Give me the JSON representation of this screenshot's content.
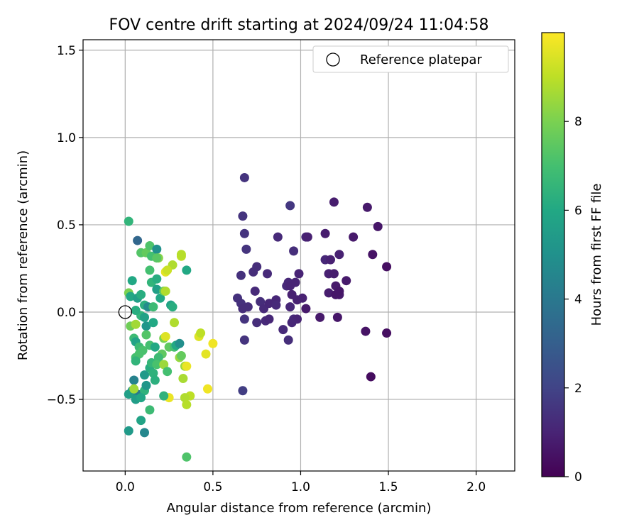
{
  "chart_data": {
    "type": "scatter",
    "title": "FOV centre drift starting at 2024/09/24 11:04:58",
    "xlabel": "Angular distance from reference (arcmin)",
    "ylabel": "Rotation from reference (arcmin)",
    "xlim": [
      -0.24,
      2.22
    ],
    "ylim": [
      -0.91,
      1.56
    ],
    "grid": true,
    "legend": {
      "position": "top-right",
      "entries": [
        "Reference platepar"
      ]
    },
    "x_ticks": [
      "0.0",
      "0.5",
      "1.0",
      "1.5",
      "2.0"
    ],
    "x_tick_values": [
      0.0,
      0.5,
      1.0,
      1.5,
      2.0
    ],
    "y_ticks": [
      "−0.5",
      "0.0",
      "0.5",
      "1.0",
      "1.5"
    ],
    "y_tick_values": [
      -0.5,
      0.0,
      0.5,
      1.0,
      1.5
    ],
    "colorbar": {
      "label": "Hours from first FF file",
      "range": [
        0,
        10
      ],
      "colormap": "viridis",
      "ticks": [
        "0",
        "2",
        "4",
        "6",
        "8"
      ],
      "tick_values": [
        0,
        2,
        4,
        6,
        8
      ]
    },
    "reference_point": {
      "x": 0.0,
      "y": 0.0,
      "label": "Reference platepar"
    },
    "points": [
      [
        0.68,
        0.77,
        1.5
      ],
      [
        0.67,
        0.55,
        1.5
      ],
      [
        0.68,
        0.45,
        1.5
      ],
      [
        0.69,
        0.36,
        1.5
      ],
      [
        0.66,
        0.21,
        1.4
      ],
      [
        0.73,
        0.23,
        1.3
      ],
      [
        0.75,
        0.26,
        1.3
      ],
      [
        0.81,
        0.22,
        1.2
      ],
      [
        0.87,
        0.43,
        1.2
      ],
      [
        0.94,
        0.61,
        1.6
      ],
      [
        0.96,
        0.35,
        1.3
      ],
      [
        0.99,
        0.22,
        1.0
      ],
      [
        1.03,
        0.43,
        1.1
      ],
      [
        1.04,
        0.43,
        0.9
      ],
      [
        1.14,
        0.45,
        0.8
      ],
      [
        1.19,
        0.63,
        0.8
      ],
      [
        1.22,
        0.33,
        0.9
      ],
      [
        1.3,
        0.43,
        0.7
      ],
      [
        1.38,
        0.6,
        0.7
      ],
      [
        1.44,
        0.49,
        0.6
      ],
      [
        1.41,
        0.33,
        0.5
      ],
      [
        1.49,
        0.26,
        0.4
      ],
      [
        1.14,
        0.3,
        1.1
      ],
      [
        1.17,
        0.3,
        0.9
      ],
      [
        1.16,
        0.22,
        0.9
      ],
      [
        1.19,
        0.22,
        0.8
      ],
      [
        1.16,
        0.11,
        0.8
      ],
      [
        1.2,
        0.15,
        0.7
      ],
      [
        1.22,
        0.1,
        0.7
      ],
      [
        1.26,
        0.18,
        0.7
      ],
      [
        1.22,
        0.12,
        0.6
      ],
      [
        1.2,
        0.1,
        0.6
      ],
      [
        0.92,
        0.15,
        1.2
      ],
      [
        0.93,
        0.17,
        1.1
      ],
      [
        0.94,
        0.15,
        1.0
      ],
      [
        0.97,
        0.17,
        1.0
      ],
      [
        0.95,
        0.1,
        0.9
      ],
      [
        0.98,
        0.07,
        0.9
      ],
      [
        1.01,
        0.08,
        0.9
      ],
      [
        0.94,
        0.03,
        1.1
      ],
      [
        0.96,
        -0.04,
        1.2
      ],
      [
        0.98,
        -0.04,
        1.0
      ],
      [
        0.95,
        -0.06,
        1.1
      ],
      [
        0.9,
        -0.1,
        1.2
      ],
      [
        0.93,
        -0.16,
        1.3
      ],
      [
        1.03,
        0.02,
        0.7
      ],
      [
        1.11,
        -0.03,
        0.7
      ],
      [
        1.21,
        -0.03,
        0.6
      ],
      [
        1.37,
        -0.11,
        0.5
      ],
      [
        1.49,
        -0.12,
        0.4
      ],
      [
        1.4,
        -0.37,
        0.3
      ],
      [
        0.64,
        0.08,
        1.4
      ],
      [
        0.66,
        0.05,
        1.4
      ],
      [
        0.67,
        0.02,
        1.3
      ],
      [
        0.7,
        0.03,
        1.3
      ],
      [
        0.74,
        0.12,
        1.2
      ],
      [
        0.77,
        0.06,
        1.3
      ],
      [
        0.79,
        0.02,
        1.2
      ],
      [
        0.82,
        0.05,
        1.1
      ],
      [
        0.86,
        0.07,
        1.1
      ],
      [
        0.86,
        0.04,
        1.2
      ],
      [
        0.8,
        -0.05,
        1.2
      ],
      [
        0.82,
        -0.04,
        1.1
      ],
      [
        0.75,
        -0.06,
        1.3
      ],
      [
        0.68,
        -0.04,
        1.5
      ],
      [
        0.68,
        -0.16,
        1.5
      ],
      [
        0.67,
        -0.45,
        1.8
      ],
      [
        0.02,
        0.52,
        6.5
      ],
      [
        0.07,
        0.41,
        3.3
      ],
      [
        0.09,
        0.34,
        7.3
      ],
      [
        0.12,
        0.34,
        7.6
      ],
      [
        0.14,
        0.38,
        7.2
      ],
      [
        0.15,
        0.32,
        7.0
      ],
      [
        0.18,
        0.36,
        5.0
      ],
      [
        0.19,
        0.31,
        8.2
      ],
      [
        0.18,
        0.31,
        7.4
      ],
      [
        0.14,
        0.24,
        7.0
      ],
      [
        0.15,
        0.17,
        6.5
      ],
      [
        0.04,
        0.18,
        6.0
      ],
      [
        0.18,
        0.19,
        6.2
      ],
      [
        0.18,
        0.13,
        5.6
      ],
      [
        0.02,
        0.11,
        8.0
      ],
      [
        0.03,
        0.09,
        6.0
      ],
      [
        0.07,
        0.08,
        5.6
      ],
      [
        0.09,
        0.1,
        6.2
      ],
      [
        0.11,
        0.04,
        6.3
      ],
      [
        0.13,
        0.03,
        4.8
      ],
      [
        0.16,
        0.03,
        6.8
      ],
      [
        0.2,
        0.08,
        6.0
      ],
      [
        0.22,
        0.12,
        7.5
      ],
      [
        0.23,
        0.12,
        8.8
      ],
      [
        0.27,
        0.27,
        8.8
      ],
      [
        0.23,
        0.23,
        9.6
      ],
      [
        0.24,
        0.24,
        9.2
      ],
      [
        0.32,
        0.32,
        9.0
      ],
      [
        0.32,
        0.33,
        8.9
      ],
      [
        0.35,
        0.24,
        6.0
      ],
      [
        0.26,
        0.04,
        5.8
      ],
      [
        0.27,
        0.03,
        6.2
      ],
      [
        0.28,
        -0.06,
        8.8
      ],
      [
        0.03,
        -0.08,
        7.8
      ],
      [
        0.06,
        -0.07,
        8.6
      ],
      [
        0.09,
        -0.02,
        6.5
      ],
      [
        0.11,
        -0.03,
        5.7
      ],
      [
        0.06,
        0.01,
        6.2
      ],
      [
        0.12,
        -0.08,
        5.2
      ],
      [
        0.16,
        -0.06,
        6.0
      ],
      [
        0.05,
        -0.15,
        6.8
      ],
      [
        0.06,
        -0.17,
        5.8
      ],
      [
        0.08,
        -0.2,
        6.8
      ],
      [
        0.1,
        -0.22,
        7.1
      ],
      [
        0.12,
        -0.13,
        7.3
      ],
      [
        0.14,
        -0.19,
        7.0
      ],
      [
        0.17,
        -0.2,
        6.0
      ],
      [
        0.22,
        -0.15,
        8.0
      ],
      [
        0.23,
        -0.14,
        9.5
      ],
      [
        0.25,
        -0.2,
        7.5
      ],
      [
        0.28,
        -0.2,
        7.0
      ],
      [
        0.29,
        -0.19,
        6.0
      ],
      [
        0.31,
        -0.18,
        4.9
      ],
      [
        0.21,
        -0.24,
        7.5
      ],
      [
        0.19,
        -0.26,
        6.8
      ],
      [
        0.06,
        -0.26,
        7.0
      ],
      [
        0.08,
        -0.24,
        7.1
      ],
      [
        0.06,
        -0.28,
        6.5
      ],
      [
        0.11,
        -0.36,
        5.4
      ],
      [
        0.14,
        -0.32,
        6.2
      ],
      [
        0.16,
        -0.35,
        6.4
      ],
      [
        0.15,
        -0.29,
        6.6
      ],
      [
        0.17,
        -0.39,
        6.3
      ],
      [
        0.18,
        -0.3,
        7.1
      ],
      [
        0.22,
        -0.3,
        8.5
      ],
      [
        0.24,
        -0.34,
        7.0
      ],
      [
        0.31,
        -0.26,
        8.4
      ],
      [
        0.32,
        -0.25,
        7.6
      ],
      [
        0.34,
        -0.31,
        8.5
      ],
      [
        0.35,
        -0.31,
        9.7
      ],
      [
        0.33,
        -0.38,
        8.7
      ],
      [
        0.42,
        -0.14,
        9.5
      ],
      [
        0.43,
        -0.12,
        9.0
      ],
      [
        0.46,
        -0.24,
        9.6
      ],
      [
        0.5,
        -0.18,
        9.8
      ],
      [
        0.47,
        -0.44,
        9.8
      ],
      [
        0.37,
        -0.48,
        9.0
      ],
      [
        0.34,
        -0.49,
        8.8
      ],
      [
        0.35,
        -0.53,
        8.9
      ],
      [
        0.25,
        -0.49,
        9.7
      ],
      [
        0.22,
        -0.48,
        6.4
      ],
      [
        0.05,
        -0.39,
        4.4
      ],
      [
        0.07,
        -0.47,
        4.0
      ],
      [
        0.11,
        -0.45,
        6.4
      ],
      [
        0.12,
        -0.42,
        5.2
      ],
      [
        0.04,
        -0.45,
        5.2
      ],
      [
        0.06,
        -0.5,
        5.5
      ],
      [
        0.09,
        -0.49,
        5.9
      ],
      [
        0.02,
        -0.47,
        5.6
      ],
      [
        0.14,
        -0.56,
        6.8
      ],
      [
        0.09,
        -0.62,
        5.8
      ],
      [
        0.11,
        -0.69,
        4.6
      ],
      [
        0.02,
        -0.68,
        5.4
      ],
      [
        0.35,
        -0.83,
        7.2
      ],
      [
        0.05,
        -0.44,
        8.6
      ]
    ]
  }
}
